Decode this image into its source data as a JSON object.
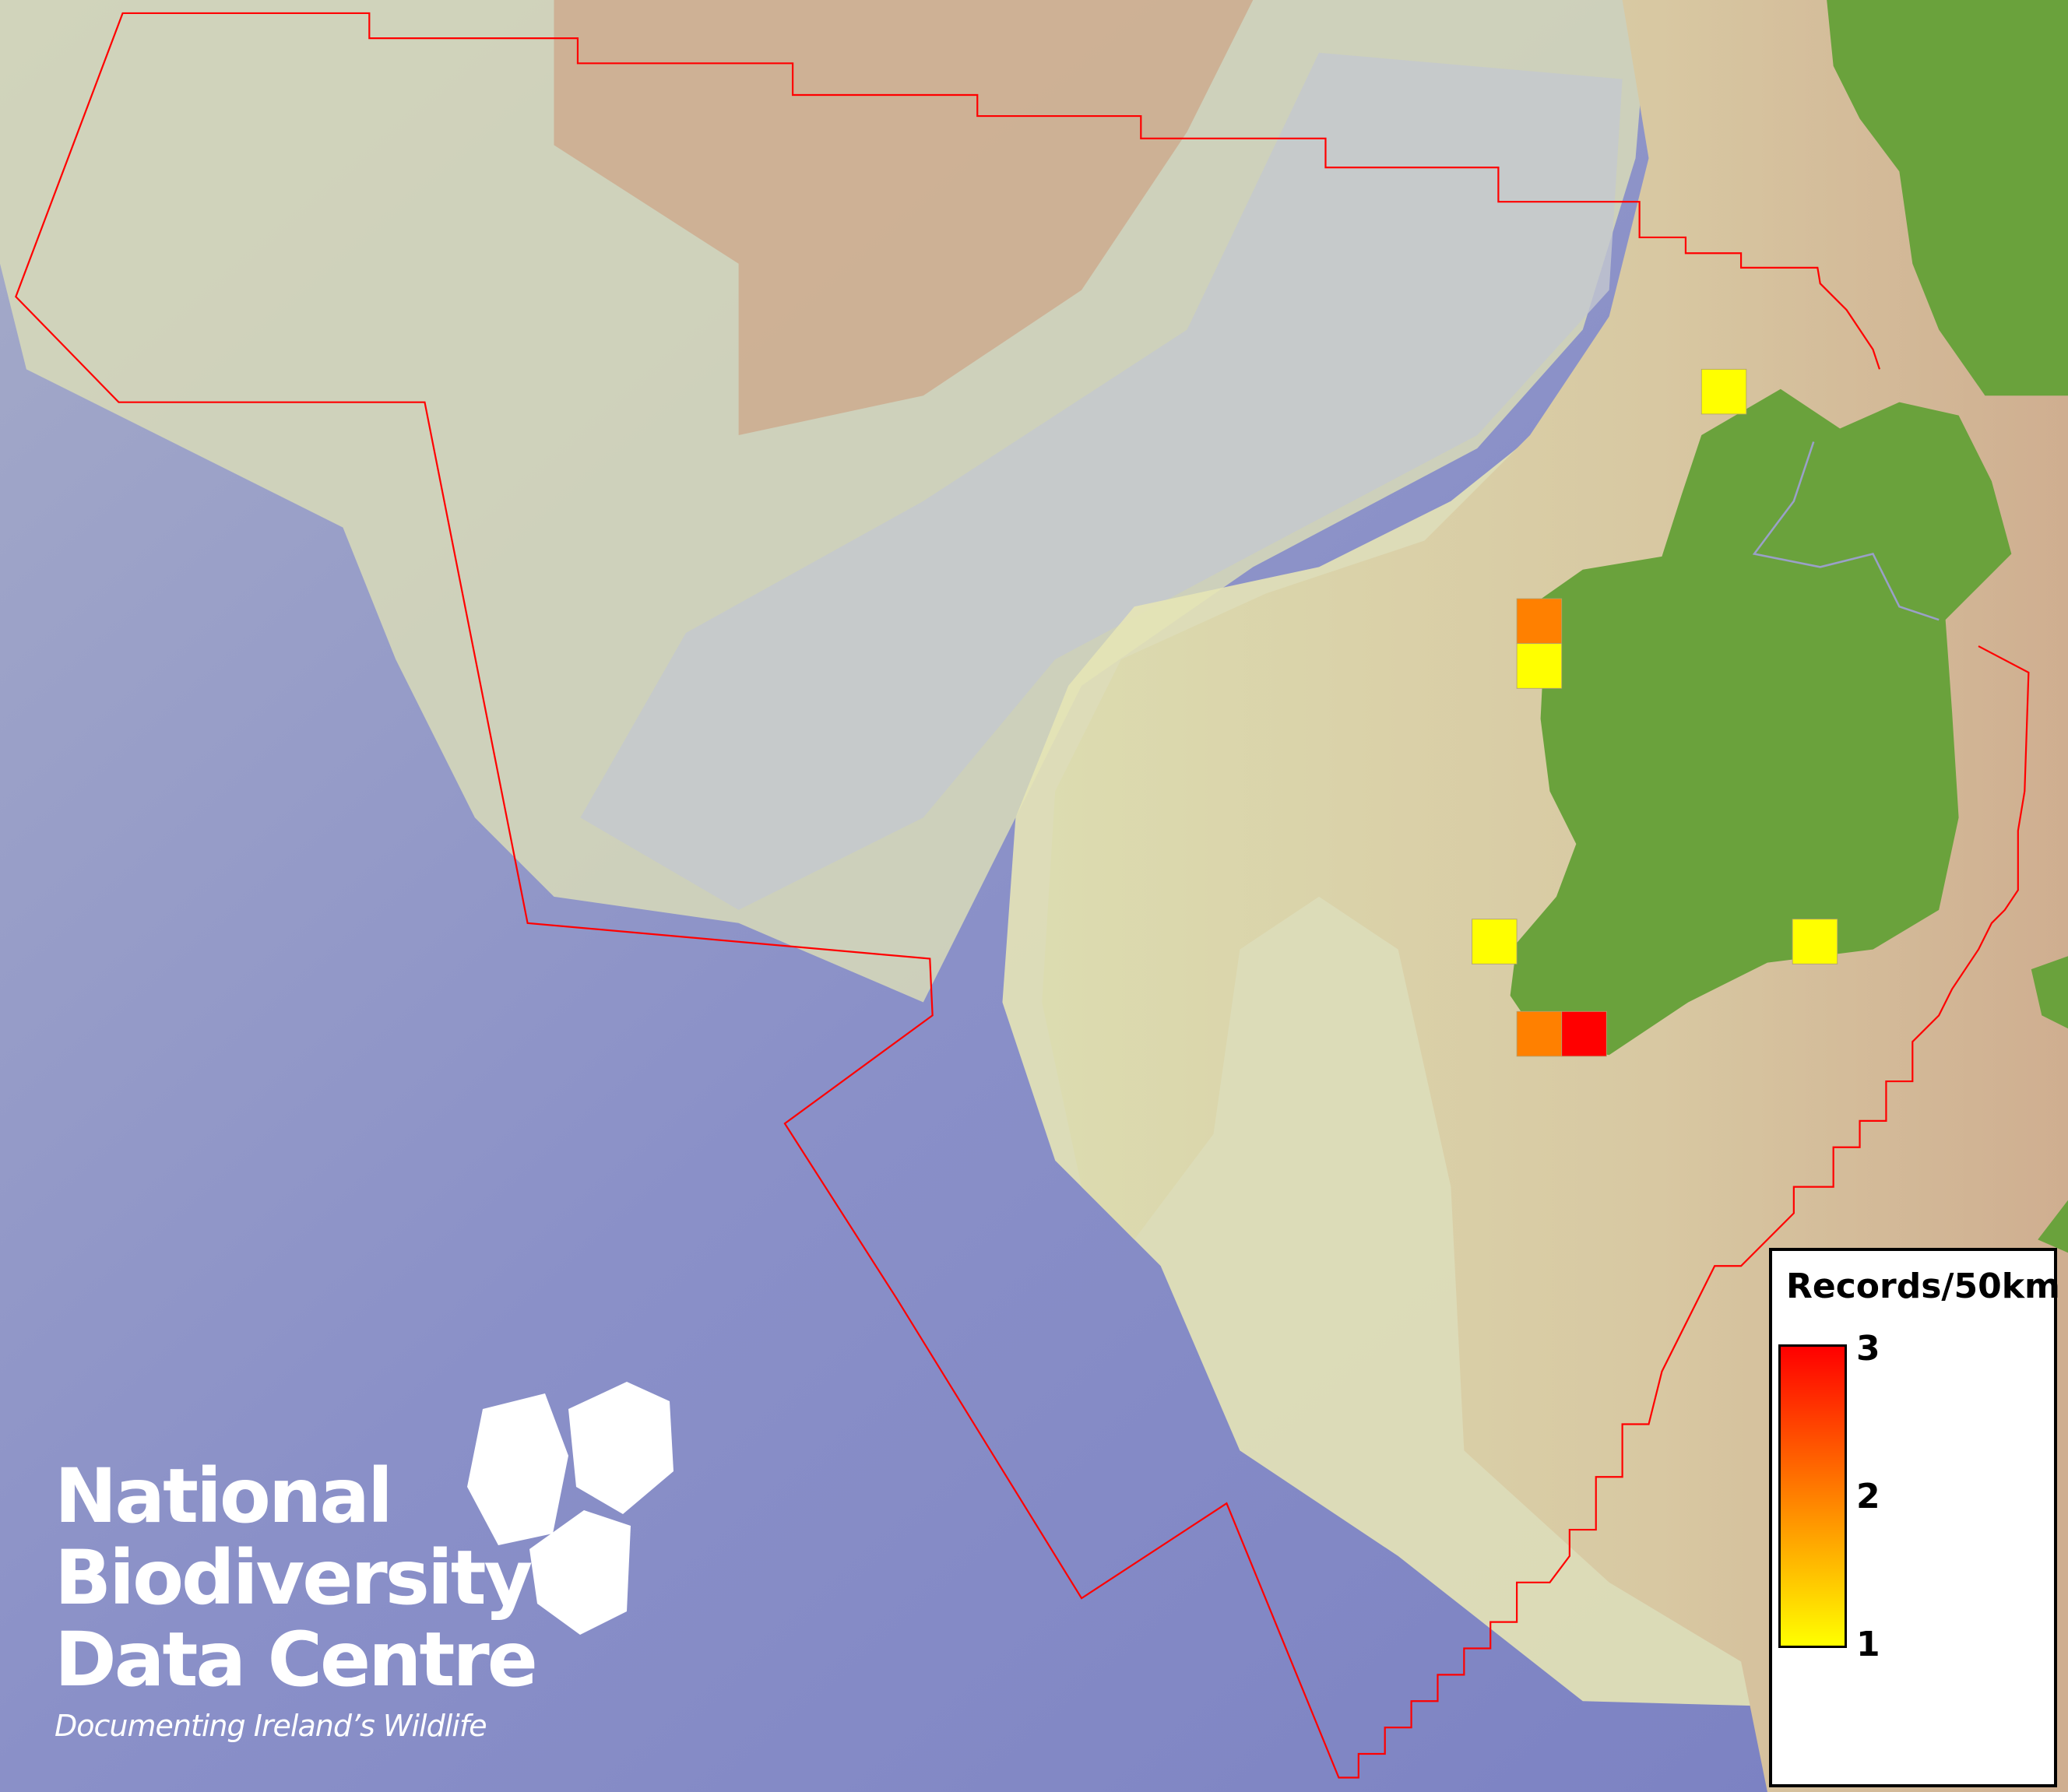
{
  "map": {
    "colors": {
      "ocean_deep": "#7f86c4",
      "slope": "#bcc2d2",
      "shelf_pale": "#e2e2b2",
      "shelf_tan": "#caa78c",
      "land": "#6aa23c",
      "boundary": "#ff0000",
      "record_1": "#ffff00",
      "record_2": "#ff8000",
      "record_3": "#ff0000"
    },
    "records": [
      {
        "cell": "north-donegal-offshore",
        "value": 1
      },
      {
        "cell": "west-mayo-north",
        "value": 2
      },
      {
        "cell": "west-mayo-south",
        "value": 1
      },
      {
        "cell": "kerry-west",
        "value": 1
      },
      {
        "cell": "waterford-coast",
        "value": 1
      },
      {
        "cell": "southwest-kerry",
        "value": 2
      },
      {
        "cell": "southwest-cork",
        "value": 3
      }
    ]
  },
  "legend": {
    "title": "Records/50km",
    "max_label": "3",
    "mid_label": "2",
    "min_label": "1",
    "range": [
      1,
      3
    ],
    "gradient": [
      "#ffff00",
      "#ff8000",
      "#ff0000"
    ]
  },
  "logo": {
    "line1": "National",
    "line2": "Biodiversity",
    "line3": "Data Centre",
    "tagline": "Documenting Ireland’s Wildlife"
  }
}
